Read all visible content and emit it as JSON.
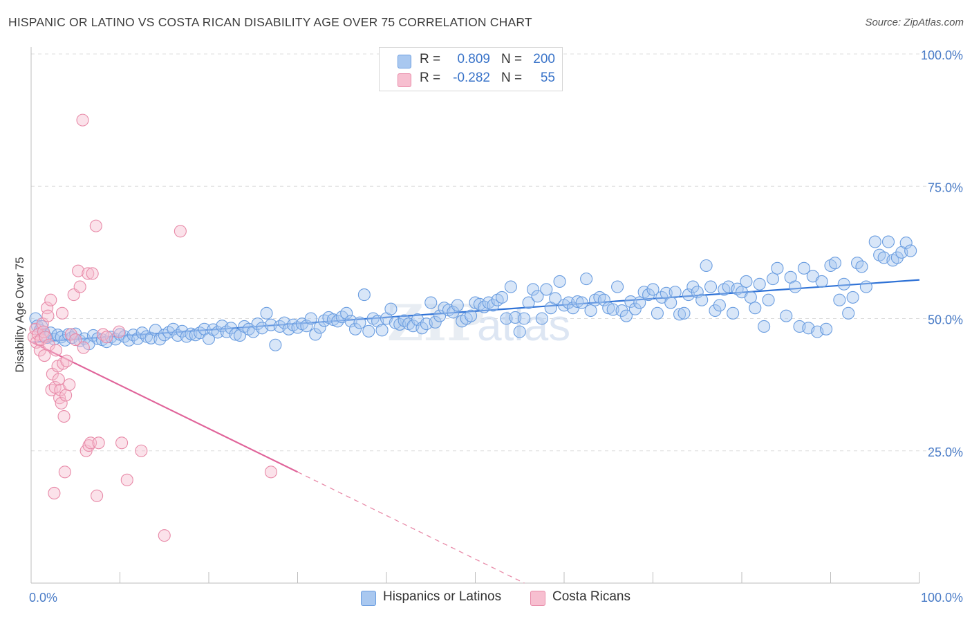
{
  "title": "HISPANIC OR LATINO VS COSTA RICAN DISABILITY AGE OVER 75 CORRELATION CHART",
  "source": "Source: ZipAtlas.com",
  "legend": {
    "rows": [
      {
        "r_label": "R =",
        "r_value": "0.809",
        "n_label": "N =",
        "n_value": "200",
        "color": "#a9c8f0",
        "border": "#6a9de0"
      },
      {
        "r_label": "R =",
        "r_value": "-0.282",
        "n_label": "N =",
        "n_value": "55",
        "color": "#f7bfd0",
        "border": "#e88aa8"
      }
    ]
  },
  "bottom_legend": [
    {
      "label": "Hispanics or Latinos",
      "color": "#a9c8f0",
      "border": "#6a9de0"
    },
    {
      "label": "Costa Ricans",
      "color": "#f7bfd0",
      "border": "#e88aa8"
    }
  ],
  "watermark": "ZIPatlas",
  "chart_data": {
    "type": "scatter",
    "title": "HISPANIC OR LATINO VS COSTA RICAN DISABILITY AGE OVER 75 CORRELATION CHART",
    "xlabel": "",
    "ylabel": "Disability Age Over 75",
    "xlim": [
      0,
      100
    ],
    "ylim": [
      0,
      100
    ],
    "x_tick_labels": [
      "0.0%",
      "100.0%"
    ],
    "y_ticks": [
      25,
      50,
      75,
      100
    ],
    "y_tick_labels": [
      "25.0%",
      "50.0%",
      "75.0%",
      "100.0%"
    ],
    "grid": true,
    "legend_position": "top-center",
    "series": [
      {
        "name": "Hispanics or Latinos",
        "color": "#6a9de0",
        "fill": "#a9c8f0",
        "trend": {
          "x": [
            0,
            100
          ],
          "y": [
            45.5,
            57.3
          ],
          "style": "solid"
        },
        "points": [
          [
            0.5,
            50.0
          ],
          [
            0.7,
            48.6
          ],
          [
            1.0,
            47.8
          ],
          [
            1.2,
            48.5
          ],
          [
            1.5,
            47.0
          ],
          [
            1.8,
            46.4
          ],
          [
            2.2,
            47.3
          ],
          [
            2.6,
            46.1
          ],
          [
            3.0,
            46.9
          ],
          [
            3.4,
            46.5
          ],
          [
            3.8,
            45.9
          ],
          [
            4.2,
            47.0
          ],
          [
            4.6,
            46.4
          ],
          [
            5.0,
            47.1
          ],
          [
            5.5,
            45.8
          ],
          [
            6.0,
            46.2
          ],
          [
            6.5,
            45.2
          ],
          [
            7.0,
            46.8
          ],
          [
            7.5,
            46.2
          ],
          [
            8.0,
            46.0
          ],
          [
            8.5,
            45.6
          ],
          [
            9.0,
            46.5
          ],
          [
            9.5,
            46.1
          ],
          [
            10.0,
            47.0
          ],
          [
            10.5,
            46.6
          ],
          [
            11.0,
            45.9
          ],
          [
            11.5,
            46.9
          ],
          [
            12.0,
            46.2
          ],
          [
            12.5,
            47.3
          ],
          [
            13.0,
            46.6
          ],
          [
            13.5,
            46.3
          ],
          [
            14.0,
            47.8
          ],
          [
            14.5,
            46.1
          ],
          [
            15.0,
            46.9
          ],
          [
            15.5,
            47.4
          ],
          [
            16.0,
            48.0
          ],
          [
            16.5,
            46.8
          ],
          [
            17.0,
            47.6
          ],
          [
            17.5,
            46.6
          ],
          [
            18.0,
            47.1
          ],
          [
            18.5,
            46.9
          ],
          [
            19.0,
            47.3
          ],
          [
            19.5,
            48.0
          ],
          [
            20.0,
            46.2
          ],
          [
            20.5,
            47.9
          ],
          [
            21.0,
            47.4
          ],
          [
            21.5,
            48.6
          ],
          [
            22.0,
            47.5
          ],
          [
            22.5,
            48.2
          ],
          [
            23.0,
            47.0
          ],
          [
            23.5,
            46.8
          ],
          [
            24.0,
            48.5
          ],
          [
            24.5,
            48.0
          ],
          [
            25.0,
            47.5
          ],
          [
            25.5,
            49.0
          ],
          [
            26.0,
            48.2
          ],
          [
            26.5,
            51.0
          ],
          [
            27.0,
            48.8
          ],
          [
            27.5,
            45.0
          ],
          [
            28.0,
            48.5
          ],
          [
            28.5,
            49.2
          ],
          [
            29.0,
            48.0
          ],
          [
            29.5,
            48.8
          ],
          [
            30.0,
            48.3
          ],
          [
            30.5,
            49.0
          ],
          [
            31.0,
            48.6
          ],
          [
            31.5,
            50.0
          ],
          [
            32.0,
            47.0
          ],
          [
            32.5,
            48.3
          ],
          [
            33.0,
            49.6
          ],
          [
            33.5,
            50.2
          ],
          [
            34.0,
            49.8
          ],
          [
            34.5,
            49.5
          ],
          [
            35.0,
            50.3
          ],
          [
            35.5,
            51.0
          ],
          [
            36.0,
            49.5
          ],
          [
            36.5,
            48.0
          ],
          [
            37.0,
            49.2
          ],
          [
            37.5,
            54.5
          ],
          [
            38.0,
            47.6
          ],
          [
            38.5,
            50.0
          ],
          [
            39.0,
            49.5
          ],
          [
            39.5,
            47.8
          ],
          [
            40.0,
            50.0
          ],
          [
            40.5,
            51.8
          ],
          [
            41.0,
            49.2
          ],
          [
            41.5,
            48.9
          ],
          [
            42.0,
            49.6
          ],
          [
            42.5,
            49.0
          ],
          [
            43.0,
            48.6
          ],
          [
            43.5,
            49.8
          ],
          [
            44.0,
            48.2
          ],
          [
            44.5,
            49.0
          ],
          [
            45.0,
            53.0
          ],
          [
            45.5,
            49.3
          ],
          [
            46.0,
            50.5
          ],
          [
            46.5,
            52.0
          ],
          [
            47.0,
            51.6
          ],
          [
            47.5,
            51.2
          ],
          [
            48.0,
            52.5
          ],
          [
            48.5,
            49.5
          ],
          [
            49.0,
            50.0
          ],
          [
            49.5,
            50.5
          ],
          [
            50.0,
            53.0
          ],
          [
            50.5,
            52.7
          ],
          [
            51.0,
            52.2
          ],
          [
            51.5,
            53.0
          ],
          [
            52.0,
            52.5
          ],
          [
            52.5,
            53.5
          ],
          [
            53.0,
            54.0
          ],
          [
            53.5,
            50.0
          ],
          [
            54.0,
            56.0
          ],
          [
            54.5,
            50.2
          ],
          [
            55.0,
            47.5
          ],
          [
            55.5,
            50.0
          ],
          [
            56.0,
            53.0
          ],
          [
            56.5,
            55.5
          ],
          [
            57.0,
            54.2
          ],
          [
            57.5,
            50.0
          ],
          [
            58.0,
            55.5
          ],
          [
            58.5,
            52.0
          ],
          [
            59.0,
            53.8
          ],
          [
            59.5,
            57.0
          ],
          [
            60.0,
            52.5
          ],
          [
            60.5,
            53.0
          ],
          [
            61.0,
            52.0
          ],
          [
            61.5,
            53.2
          ],
          [
            62.0,
            53.0
          ],
          [
            62.5,
            57.5
          ],
          [
            63.0,
            51.5
          ],
          [
            63.5,
            53.5
          ],
          [
            64.0,
            54.0
          ],
          [
            64.5,
            53.5
          ],
          [
            65.0,
            52.0
          ],
          [
            65.5,
            51.7
          ],
          [
            66.0,
            56.0
          ],
          [
            66.5,
            51.5
          ],
          [
            67.0,
            50.5
          ],
          [
            67.5,
            53.2
          ],
          [
            68.0,
            51.8
          ],
          [
            68.5,
            53.0
          ],
          [
            69.0,
            55.0
          ],
          [
            69.5,
            54.5
          ],
          [
            70.0,
            55.5
          ],
          [
            70.5,
            51.0
          ],
          [
            71.0,
            54.0
          ],
          [
            71.5,
            54.8
          ],
          [
            72.0,
            53.0
          ],
          [
            72.5,
            55.0
          ],
          [
            73.0,
            50.8
          ],
          [
            73.5,
            51.0
          ],
          [
            74.0,
            54.5
          ],
          [
            74.5,
            56.0
          ],
          [
            75.0,
            55.0
          ],
          [
            75.5,
            53.5
          ],
          [
            76.0,
            60.0
          ],
          [
            76.5,
            56.0
          ],
          [
            77.0,
            51.5
          ],
          [
            77.5,
            52.5
          ],
          [
            78.0,
            55.5
          ],
          [
            78.5,
            56.0
          ],
          [
            79.0,
            51.0
          ],
          [
            79.5,
            55.6
          ],
          [
            80.0,
            55.0
          ],
          [
            80.5,
            57.0
          ],
          [
            81.0,
            54.0
          ],
          [
            81.5,
            52.0
          ],
          [
            82.0,
            56.5
          ],
          [
            82.5,
            48.5
          ],
          [
            83.0,
            53.5
          ],
          [
            83.5,
            57.5
          ],
          [
            84.0,
            59.5
          ],
          [
            85.0,
            50.5
          ],
          [
            85.5,
            57.8
          ],
          [
            86.0,
            56.0
          ],
          [
            86.5,
            48.5
          ],
          [
            87.0,
            59.5
          ],
          [
            87.5,
            48.2
          ],
          [
            88.0,
            58.0
          ],
          [
            88.5,
            47.5
          ],
          [
            89.0,
            57.0
          ],
          [
            89.5,
            48.0
          ],
          [
            90.0,
            60.0
          ],
          [
            90.5,
            60.5
          ],
          [
            91.0,
            53.5
          ],
          [
            91.5,
            56.5
          ],
          [
            92.0,
            51.0
          ],
          [
            92.5,
            54.0
          ],
          [
            93.0,
            60.5
          ],
          [
            94.0,
            56.0
          ],
          [
            95.0,
            64.5
          ],
          [
            95.5,
            62.0
          ],
          [
            96.0,
            61.5
          ],
          [
            96.5,
            64.5
          ],
          [
            97.0,
            61.0
          ],
          [
            97.5,
            61.5
          ],
          [
            98.0,
            62.5
          ],
          [
            98.5,
            64.3
          ],
          [
            99.0,
            62.8
          ],
          [
            93.5,
            59.8
          ]
        ]
      },
      {
        "name": "Costa Ricans",
        "color": "#e88aa8",
        "fill": "#f7bfd0",
        "trend": {
          "x": [
            0,
            30,
            100
          ],
          "y": [
            45.6,
            21.0,
            -36.6
          ],
          "style": "solid-then-dashed",
          "solid_until": 30
        },
        "points": [
          [
            0.3,
            46.5
          ],
          [
            0.5,
            48.0
          ],
          [
            0.6,
            45.5
          ],
          [
            0.8,
            47.0
          ],
          [
            1.0,
            44.0
          ],
          [
            1.1,
            46.0
          ],
          [
            1.3,
            49.0
          ],
          [
            1.4,
            47.5
          ],
          [
            1.5,
            43.0
          ],
          [
            1.6,
            46.5
          ],
          [
            1.8,
            52.0
          ],
          [
            1.9,
            50.5
          ],
          [
            2.0,
            45.0
          ],
          [
            2.2,
            53.5
          ],
          [
            2.3,
            36.5
          ],
          [
            2.4,
            39.5
          ],
          [
            2.6,
            17.0
          ],
          [
            2.7,
            37.0
          ],
          [
            2.8,
            44.0
          ],
          [
            3.0,
            41.0
          ],
          [
            3.1,
            38.5
          ],
          [
            3.2,
            35.0
          ],
          [
            3.3,
            36.5
          ],
          [
            3.4,
            34.0
          ],
          [
            3.5,
            51.0
          ],
          [
            3.6,
            41.5
          ],
          [
            3.7,
            31.5
          ],
          [
            3.8,
            21.0
          ],
          [
            3.9,
            35.5
          ],
          [
            4.0,
            42.0
          ],
          [
            4.3,
            37.5
          ],
          [
            4.5,
            47.0
          ],
          [
            4.8,
            54.5
          ],
          [
            5.0,
            46.0
          ],
          [
            5.3,
            59.0
          ],
          [
            5.5,
            56.0
          ],
          [
            5.8,
            87.5
          ],
          [
            5.9,
            44.5
          ],
          [
            6.2,
            25.0
          ],
          [
            6.4,
            58.5
          ],
          [
            6.5,
            26.0
          ],
          [
            6.7,
            26.5
          ],
          [
            6.9,
            58.5
          ],
          [
            7.3,
            67.5
          ],
          [
            7.4,
            16.5
          ],
          [
            7.6,
            26.5
          ],
          [
            8.1,
            47.0
          ],
          [
            8.5,
            46.5
          ],
          [
            9.9,
            47.5
          ],
          [
            10.2,
            26.5
          ],
          [
            10.8,
            19.5
          ],
          [
            12.4,
            25.0
          ],
          [
            15.0,
            9.0
          ],
          [
            16.8,
            66.5
          ],
          [
            27.0,
            21.0
          ]
        ]
      }
    ]
  }
}
